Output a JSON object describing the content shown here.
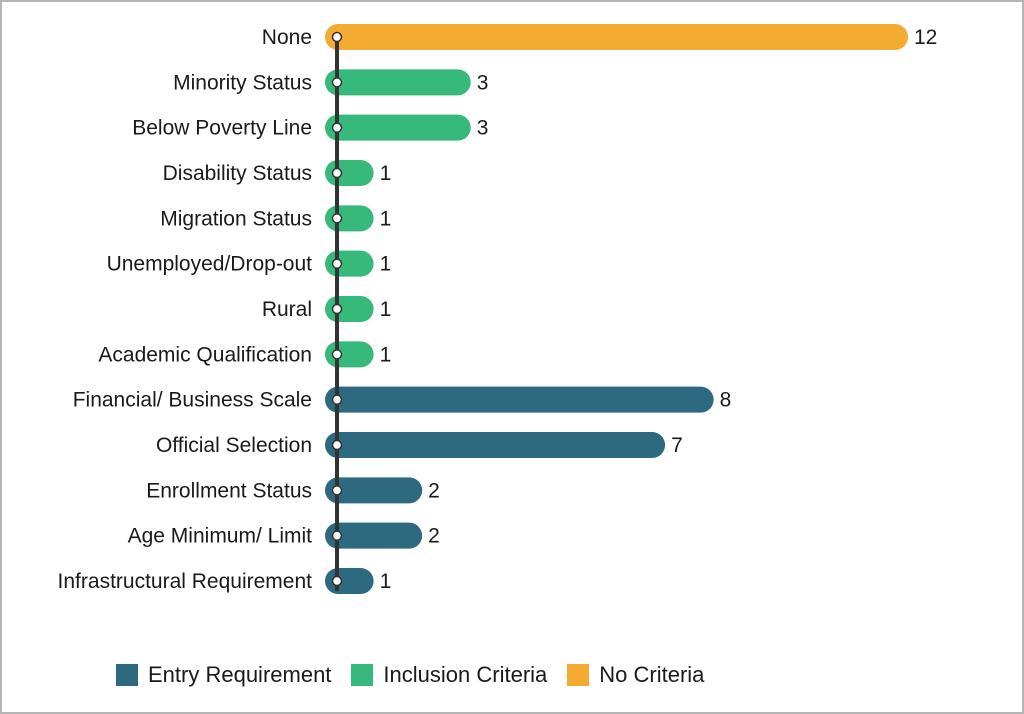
{
  "chart_data": {
    "type": "bar",
    "orientation": "horizontal",
    "title": "",
    "xlabel": "",
    "ylabel": "",
    "xlim": [
      0,
      12
    ],
    "grid": false,
    "legend_position": "bottom",
    "categories": [
      "None",
      "Minority Status",
      "Below Poverty Line",
      "Disability Status",
      "Migration Status",
      "Unemployed/Drop-out",
      "Rural",
      "Academic Qualification",
      "Financial/ Business Scale",
      "Official Selection",
      "Enrollment Status",
      "Age Minimum/ Limit",
      "Infrastructural Requirement"
    ],
    "values": [
      12,
      3,
      3,
      1,
      1,
      1,
      1,
      1,
      8,
      7,
      2,
      2,
      1
    ],
    "value_labels": [
      "12",
      "3",
      "3",
      "1",
      "1",
      "1",
      "1",
      "1",
      "8",
      "7",
      "2",
      "2",
      "1"
    ],
    "groups": [
      "No Criteria",
      "Inclusion Criteria",
      "Inclusion Criteria",
      "Inclusion Criteria",
      "Inclusion Criteria",
      "Inclusion Criteria",
      "Inclusion Criteria",
      "Inclusion Criteria",
      "Entry Requirement",
      "Entry Requirement",
      "Entry Requirement",
      "Entry Requirement",
      "Entry Requirement"
    ],
    "legend": [
      {
        "name": "Entry Requirement",
        "color": "#2e6a7f"
      },
      {
        "name": "Inclusion Criteria",
        "color": "#36b97a"
      },
      {
        "name": "No Criteria",
        "color": "#f4ab32"
      }
    ],
    "axis_line_color": "#333333"
  }
}
